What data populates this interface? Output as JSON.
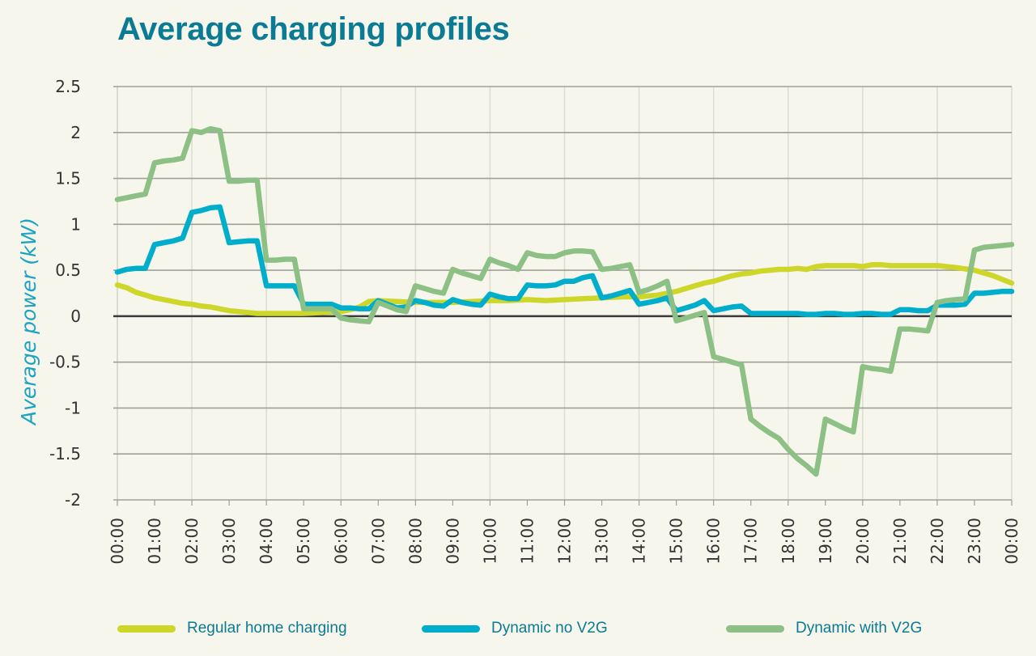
{
  "chart_data": {
    "type": "line",
    "title": "Average charging profiles",
    "xlabel": "",
    "ylabel": "Average power (kW)",
    "ylim": [
      -2,
      2.5
    ],
    "yticks": [
      2.5,
      2,
      1.5,
      1,
      0.5,
      0,
      -0.5,
      -1,
      -1.5,
      -2
    ],
    "ytick_labels": [
      "2.5",
      "2",
      "1.5",
      "1",
      "0.5",
      "0",
      "-0.5",
      "-1",
      "-1.5",
      "-2"
    ],
    "x_unit": "hours",
    "xlim": [
      0,
      24
    ],
    "xticks": [
      0,
      1,
      2,
      3,
      4,
      5,
      6,
      7,
      8,
      9,
      10,
      11,
      12,
      13,
      14,
      15,
      16,
      17,
      18,
      19,
      20,
      21,
      22,
      23,
      24
    ],
    "xtick_labels": [
      "00:00",
      "01:00",
      "02:00",
      "03:00",
      "04:00",
      "05:00",
      "06:00",
      "07:00",
      "08:00",
      "09:00",
      "10:00",
      "11:00",
      "12:00",
      "13:00",
      "14:00",
      "15:00",
      "16:00",
      "17:00",
      "18:00",
      "19:00",
      "20:00",
      "21:00",
      "22:00",
      "23:00",
      "00:00"
    ],
    "grid": "horizontal major + vertical every 2 hours",
    "legend_position": "bottom",
    "series": [
      {
        "name": "Regular home charging",
        "color": "#cdd629",
        "x": [
          0,
          0.25,
          0.5,
          0.75,
          1,
          1.25,
          1.5,
          1.75,
          2,
          2.25,
          2.5,
          2.75,
          3,
          3.25,
          3.5,
          3.75,
          4,
          4.5,
          5,
          5.5,
          6,
          6.25,
          6.5,
          6.75,
          7,
          7.5,
          8,
          8.5,
          9,
          9.5,
          10,
          10.5,
          11,
          11.5,
          12,
          12.5,
          13,
          13.5,
          14,
          14.25,
          14.5,
          14.75,
          15,
          15.25,
          15.5,
          15.75,
          16,
          16.25,
          16.5,
          16.75,
          17,
          17.25,
          17.5,
          17.75,
          18,
          18.25,
          18.5,
          18.75,
          19,
          19.25,
          19.5,
          19.75,
          20,
          20.25,
          20.5,
          20.75,
          21,
          21.5,
          22,
          22.5,
          23,
          23.25,
          23.5,
          23.75,
          24
        ],
        "values": [
          0.34,
          0.31,
          0.26,
          0.23,
          0.2,
          0.18,
          0.16,
          0.14,
          0.13,
          0.11,
          0.1,
          0.08,
          0.06,
          0.05,
          0.04,
          0.03,
          0.03,
          0.03,
          0.03,
          0.04,
          0.05,
          0.07,
          0.1,
          0.16,
          0.17,
          0.16,
          0.15,
          0.15,
          0.15,
          0.16,
          0.17,
          0.17,
          0.18,
          0.17,
          0.18,
          0.19,
          0.2,
          0.21,
          0.21,
          0.22,
          0.23,
          0.25,
          0.27,
          0.3,
          0.33,
          0.36,
          0.38,
          0.41,
          0.44,
          0.46,
          0.47,
          0.49,
          0.5,
          0.51,
          0.51,
          0.52,
          0.51,
          0.54,
          0.55,
          0.55,
          0.55,
          0.55,
          0.54,
          0.56,
          0.56,
          0.55,
          0.55,
          0.55,
          0.55,
          0.53,
          0.5,
          0.47,
          0.44,
          0.4,
          0.36
        ]
      },
      {
        "name": "Dynamic no V2G",
        "color": "#00aecb",
        "x": [
          0,
          0.25,
          0.5,
          0.75,
          1,
          1.25,
          1.5,
          1.75,
          2,
          2.25,
          2.5,
          2.75,
          3,
          3.25,
          3.5,
          3.75,
          4,
          4.25,
          4.5,
          4.75,
          5,
          5.25,
          5.5,
          5.75,
          6,
          6.25,
          6.5,
          6.75,
          7,
          7.25,
          7.5,
          7.75,
          8,
          8.25,
          8.5,
          8.75,
          9,
          9.25,
          9.5,
          9.75,
          10,
          10.25,
          10.5,
          10.75,
          11,
          11.25,
          11.5,
          11.75,
          12,
          12.25,
          12.5,
          12.75,
          13,
          13.25,
          13.5,
          13.75,
          14,
          14.25,
          14.5,
          14.75,
          15,
          15.25,
          15.5,
          15.75,
          16,
          16.25,
          16.5,
          16.75,
          17,
          17.25,
          17.5,
          17.75,
          18,
          18.25,
          18.5,
          18.75,
          19,
          19.25,
          19.5,
          19.75,
          20,
          20.25,
          20.5,
          20.75,
          21,
          21.25,
          21.5,
          21.75,
          22,
          22.25,
          22.5,
          22.75,
          23,
          23.25,
          23.5,
          23.75,
          24
        ],
        "values": [
          0.48,
          0.51,
          0.52,
          0.52,
          0.78,
          0.8,
          0.82,
          0.85,
          1.13,
          1.15,
          1.18,
          1.19,
          0.8,
          0.81,
          0.82,
          0.82,
          0.33,
          0.33,
          0.33,
          0.33,
          0.13,
          0.13,
          0.13,
          0.13,
          0.09,
          0.09,
          0.08,
          0.08,
          0.17,
          0.13,
          0.09,
          0.1,
          0.17,
          0.15,
          0.12,
          0.11,
          0.18,
          0.15,
          0.13,
          0.12,
          0.24,
          0.21,
          0.19,
          0.19,
          0.34,
          0.33,
          0.33,
          0.34,
          0.38,
          0.38,
          0.42,
          0.44,
          0.2,
          0.22,
          0.25,
          0.28,
          0.13,
          0.15,
          0.17,
          0.2,
          0.06,
          0.09,
          0.12,
          0.17,
          0.06,
          0.08,
          0.1,
          0.11,
          0.03,
          0.03,
          0.03,
          0.03,
          0.03,
          0.03,
          0.02,
          0.02,
          0.03,
          0.03,
          0.02,
          0.02,
          0.03,
          0.03,
          0.02,
          0.02,
          0.07,
          0.07,
          0.06,
          0.06,
          0.12,
          0.12,
          0.12,
          0.13,
          0.25,
          0.25,
          0.26,
          0.27,
          0.27
        ]
      },
      {
        "name": "Dynamic with V2G",
        "color": "#8cc085",
        "x": [
          0,
          0.25,
          0.5,
          0.75,
          1,
          1.25,
          1.5,
          1.75,
          2,
          2.25,
          2.5,
          2.75,
          3,
          3.25,
          3.5,
          3.75,
          4,
          4.25,
          4.5,
          4.75,
          5,
          5.25,
          5.5,
          5.75,
          6,
          6.25,
          6.5,
          6.75,
          7,
          7.25,
          7.5,
          7.75,
          8,
          8.25,
          8.5,
          8.75,
          9,
          9.25,
          9.5,
          9.75,
          10,
          10.25,
          10.5,
          10.75,
          11,
          11.25,
          11.5,
          11.75,
          12,
          12.25,
          12.5,
          12.75,
          13,
          13.25,
          13.5,
          13.75,
          14,
          14.25,
          14.5,
          14.75,
          15,
          15.25,
          15.5,
          15.75,
          16,
          16.25,
          16.5,
          16.75,
          17,
          17.25,
          17.5,
          17.75,
          18,
          18.25,
          18.5,
          18.75,
          19,
          19.25,
          19.5,
          19.75,
          20,
          20.25,
          20.5,
          20.75,
          21,
          21.25,
          21.5,
          21.75,
          22,
          22.25,
          22.5,
          22.75,
          23,
          23.25,
          23.5,
          23.75,
          24
        ],
        "values": [
          1.27,
          1.29,
          1.31,
          1.33,
          1.67,
          1.69,
          1.7,
          1.72,
          2.02,
          2.0,
          2.04,
          2.02,
          1.47,
          1.47,
          1.48,
          1.48,
          0.61,
          0.61,
          0.62,
          0.62,
          0.08,
          0.08,
          0.08,
          0.08,
          -0.02,
          -0.04,
          -0.05,
          -0.06,
          0.15,
          0.11,
          0.07,
          0.05,
          0.33,
          0.3,
          0.27,
          0.25,
          0.51,
          0.47,
          0.44,
          0.41,
          0.62,
          0.58,
          0.55,
          0.51,
          0.69,
          0.66,
          0.65,
          0.65,
          0.69,
          0.71,
          0.71,
          0.7,
          0.51,
          0.52,
          0.54,
          0.56,
          0.26,
          0.29,
          0.33,
          0.38,
          -0.05,
          -0.02,
          0.01,
          0.04,
          -0.44,
          -0.47,
          -0.5,
          -0.53,
          -1.12,
          -1.2,
          -1.27,
          -1.33,
          -1.45,
          -1.55,
          -1.63,
          -1.72,
          -1.12,
          -1.17,
          -1.22,
          -1.26,
          -0.55,
          -0.57,
          -0.58,
          -0.6,
          -0.14,
          -0.14,
          -0.15,
          -0.16,
          0.15,
          0.17,
          0.18,
          0.19,
          0.72,
          0.75,
          0.76,
          0.77,
          0.78
        ]
      }
    ]
  },
  "legend": {
    "items": [
      {
        "label": "Regular home charging",
        "color": "#cdd629"
      },
      {
        "label": "Dynamic no V2G",
        "color": "#00aecb"
      },
      {
        "label": "Dynamic with V2G",
        "color": "#8cc085"
      }
    ]
  },
  "colors": {
    "title": "#0b7a93",
    "ylabel": "#1ea2c2",
    "background": "#f6f6ec"
  }
}
